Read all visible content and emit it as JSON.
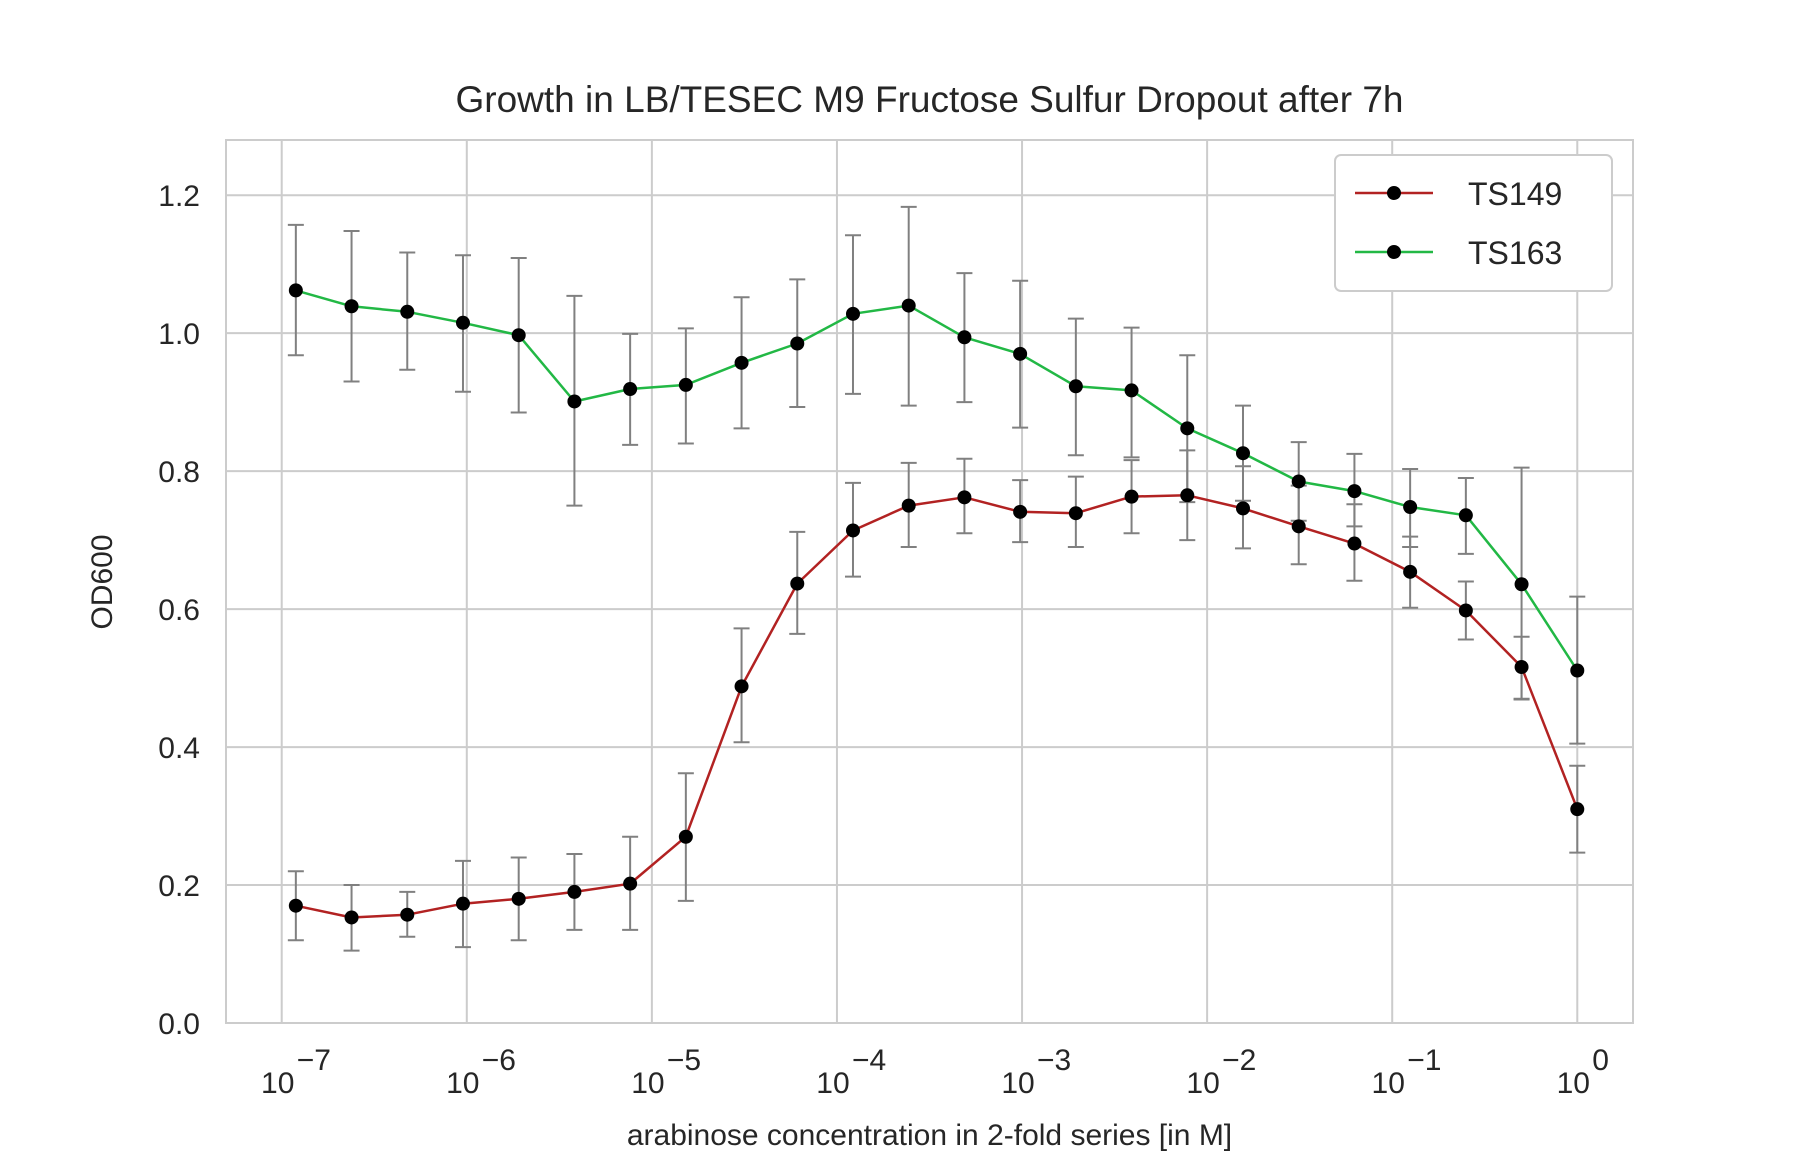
{
  "chart_data": {
    "type": "line",
    "title": "Growth in LB/TESEC M9 Fructose Sulfur Dropout after 7h",
    "xlabel": "arabinose concentration in 2-fold series [in M]",
    "ylabel": "OD600",
    "xscale": "log",
    "xlim": [
      5e-08,
      2
    ],
    "ylim": [
      0,
      1.28
    ],
    "xticks": [
      {
        "value": 1e-07,
        "base": "10",
        "exp": "−7"
      },
      {
        "value": 1e-06,
        "base": "10",
        "exp": "−6"
      },
      {
        "value": 1e-05,
        "base": "10",
        "exp": "−5"
      },
      {
        "value": 0.0001,
        "base": "10",
        "exp": "−4"
      },
      {
        "value": 0.001,
        "base": "10",
        "exp": "−3"
      },
      {
        "value": 0.01,
        "base": "10",
        "exp": "−2"
      },
      {
        "value": 0.1,
        "base": "10",
        "exp": "−1"
      },
      {
        "value": 1,
        "base": "10",
        "exp": "0"
      }
    ],
    "yticks": [
      {
        "value": 0.0,
        "label": "0.0"
      },
      {
        "value": 0.2,
        "label": "0.2"
      },
      {
        "value": 0.4,
        "label": "0.4"
      },
      {
        "value": 0.6,
        "label": "0.6"
      },
      {
        "value": 0.8,
        "label": "0.8"
      },
      {
        "value": 1.0,
        "label": "1.0"
      },
      {
        "value": 1.2,
        "label": "1.2"
      }
    ],
    "grid": true,
    "legend_position": "top-right",
    "marker_color": "#000000",
    "errorbar_color": "#808080",
    "x": [
      1.1920929e-07,
      2.3841858e-07,
      4.7683716e-07,
      9.5367432e-07,
      1.9073486e-06,
      3.8146973e-06,
      7.6293945e-06,
      1.5258789e-05,
      3.0517578e-05,
      6.1035156e-05,
      0.00012207031,
      0.00024414063,
      0.00048828125,
      0.0009765625,
      0.001953125,
      0.00390625,
      0.0078125,
      0.015625,
      0.03125,
      0.0625,
      0.125,
      0.25,
      0.5,
      1.0
    ],
    "series": [
      {
        "name": "TS149",
        "color": "#b22222",
        "values": [
          0.17,
          0.153,
          0.157,
          0.173,
          0.18,
          0.19,
          0.202,
          0.27,
          0.488,
          0.637,
          0.714,
          0.75,
          0.762,
          0.741,
          0.739,
          0.763,
          0.765,
          0.746,
          0.72,
          0.695,
          0.654,
          0.598,
          0.516,
          0.31
        ],
        "err_low": [
          0.12,
          0.105,
          0.125,
          0.11,
          0.12,
          0.135,
          0.135,
          0.177,
          0.407,
          0.564,
          0.647,
          0.69,
          0.71,
          0.697,
          0.69,
          0.71,
          0.7,
          0.688,
          0.665,
          0.641,
          0.602,
          0.556,
          0.469,
          0.247
        ],
        "err_high": [
          0.22,
          0.2,
          0.19,
          0.235,
          0.24,
          0.245,
          0.27,
          0.362,
          0.572,
          0.712,
          0.783,
          0.812,
          0.818,
          0.787,
          0.792,
          0.816,
          0.83,
          0.807,
          0.779,
          0.752,
          0.705,
          0.64,
          0.56,
          0.373
        ]
      },
      {
        "name": "TS163",
        "color": "#22b845",
        "values": [
          1.062,
          1.039,
          1.031,
          1.015,
          0.997,
          0.901,
          0.919,
          0.925,
          0.957,
          0.985,
          1.028,
          1.04,
          0.994,
          0.97,
          0.923,
          0.917,
          0.862,
          0.826,
          0.785,
          0.771,
          0.748,
          0.736,
          0.636,
          0.511
        ],
        "err_low": [
          0.968,
          0.93,
          0.947,
          0.915,
          0.885,
          0.75,
          0.838,
          0.84,
          0.862,
          0.893,
          0.912,
          0.895,
          0.9,
          0.863,
          0.823,
          0.82,
          0.755,
          0.757,
          0.728,
          0.72,
          0.69,
          0.68,
          0.47,
          0.405
        ],
        "err_high": [
          1.157,
          1.148,
          1.117,
          1.113,
          1.109,
          1.054,
          0.999,
          1.007,
          1.052,
          1.078,
          1.142,
          1.183,
          1.087,
          1.076,
          1.021,
          1.008,
          0.968,
          0.895,
          0.842,
          0.825,
          0.803,
          0.79,
          0.805,
          0.618
        ]
      }
    ]
  }
}
